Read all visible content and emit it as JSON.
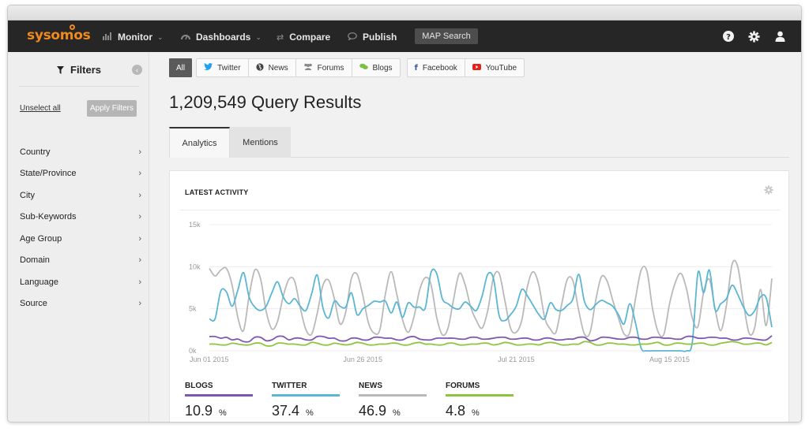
{
  "nav": {
    "logo": "sysomos",
    "items": [
      {
        "label": "Monitor",
        "icon": "bar-chart-icon"
      },
      {
        "label": "Dashboards",
        "icon": "gauge-icon"
      },
      {
        "label": "Compare",
        "icon": "swap-icon"
      },
      {
        "label": "Publish",
        "icon": "speech-bubble-icon"
      }
    ],
    "map_search": "MAP Search",
    "right_icons": [
      "help-icon",
      "gear-icon",
      "user-icon"
    ]
  },
  "sidebar": {
    "title": "Filters",
    "unselect_all": "Unselect all",
    "apply_filters": "Apply Filters",
    "filters": [
      "Country",
      "State/Province",
      "City",
      "Sub-Keywords",
      "Age Group",
      "Domain",
      "Language",
      "Source"
    ]
  },
  "sources": {
    "all": "All",
    "group1": [
      {
        "label": "Twitter",
        "icon": "twitter-icon",
        "color": "#1da1f2"
      },
      {
        "label": "News",
        "icon": "globe-icon",
        "color": "#444444"
      },
      {
        "label": "Forums",
        "icon": "people-icon",
        "color": "#888888"
      },
      {
        "label": "Blogs",
        "icon": "chat-icon",
        "color": "#7ac143"
      }
    ],
    "group2": [
      {
        "label": "Facebook",
        "icon": "facebook-icon",
        "color": "#3b5998"
      },
      {
        "label": "YouTube",
        "icon": "youtube-icon",
        "color": "#e62117"
      }
    ]
  },
  "results_title": "1,209,549 Query Results",
  "tabs": [
    "Analytics",
    "Mentions"
  ],
  "card": {
    "title": "LATEST ACTIVITY"
  },
  "chart_data": {
    "type": "line",
    "title": "LATEST ACTIVITY",
    "ylim": [
      0,
      15000
    ],
    "ytick_labels": [
      "15k",
      "10k",
      "5k",
      "0k"
    ],
    "xtick_labels": [
      "Jun 01 2015",
      "Jun 26 2015",
      "Jul 21 2015",
      "Aug 15 2015"
    ],
    "n_points": 100,
    "series": [
      {
        "name": "NEWS",
        "color": "#b9b9b9",
        "values": [
          9800,
          8900,
          9600,
          9800,
          7800,
          4000,
          2400,
          6500,
          9600,
          8600,
          4700,
          2600,
          3500,
          6500,
          8500,
          8300,
          5100,
          2500,
          2000,
          4500,
          7800,
          8400,
          6200,
          3200,
          4600,
          8600,
          9100,
          6600,
          3300,
          2100,
          2500,
          6800,
          9400,
          6700,
          3700,
          2200,
          4000,
          7200,
          8700,
          7900,
          4000,
          1900,
          2700,
          6200,
          9200,
          7900,
          5200,
          3600,
          2700,
          4800,
          8700,
          9200,
          6000,
          2700,
          2200,
          3700,
          7700,
          9400,
          7800,
          4000,
          2600,
          2200,
          5500,
          8500,
          8300,
          4800,
          2000,
          2200,
          6000,
          8800,
          8300,
          6000,
          3900,
          2000,
          2200,
          6200,
          9600,
          9500,
          5000,
          2200,
          2000,
          5600,
          8100,
          9200,
          7300,
          3900,
          2900,
          7000,
          8500,
          5000,
          2400,
          5400,
          10300,
          10000,
          5700,
          2100,
          2800,
          7300,
          3000,
          8600
        ]
      },
      {
        "name": "TWITTER",
        "color": "#5bb6d3",
        "values": [
          3800,
          3800,
          7100,
          7000,
          5300,
          7200,
          9300,
          6400,
          5200,
          4800,
          5300,
          6900,
          8200,
          6400,
          5600,
          6200,
          5300,
          4800,
          6800,
          9000,
          5100,
          3900,
          5900,
          5300,
          5200,
          6900,
          4300,
          5000,
          5400,
          5900,
          5800,
          5900,
          4500,
          5800,
          4000,
          5700,
          5200,
          5200,
          5100,
          9300,
          9200,
          6200,
          5600,
          5100,
          5000,
          5800,
          5300,
          4800,
          6500,
          9100,
          8600,
          4200,
          3600,
          4300,
          5300,
          7300,
          6500,
          5400,
          4300,
          3800,
          5700,
          4900,
          4800,
          5400,
          6200,
          9100,
          5900,
          4900,
          5500,
          6000,
          5700,
          5300,
          4300,
          3200,
          5600,
          3300,
          300,
          0,
          0,
          0,
          0,
          0,
          0,
          0,
          0,
          1000,
          9300,
          6900,
          9600,
          4900,
          5600,
          6200,
          7800,
          6700,
          5200,
          4200,
          4800,
          6400,
          6300,
          2800
        ]
      },
      {
        "name": "BLOGS",
        "color": "#7e57b1",
        "values": [
          1700,
          1700,
          1500,
          1600,
          1300,
          1400,
          1100,
          1100,
          1600,
          1600,
          1200,
          1300,
          1700,
          1700,
          1300,
          1500,
          1500,
          1300,
          1300,
          1700,
          1700,
          1500,
          1500,
          1200,
          1200,
          1500,
          1500,
          1300,
          1300,
          1600,
          1600,
          1500,
          1500,
          1300,
          1300,
          1600,
          1700,
          1400,
          1300,
          1300,
          1500,
          1500,
          1500,
          1500,
          1400,
          1400,
          1600,
          1600,
          1400,
          1400,
          1500,
          1600,
          1600,
          1400,
          1400,
          1500,
          1500,
          1300,
          1300,
          1500,
          1500,
          1300,
          1300,
          1400,
          1400,
          1600,
          1600,
          1200,
          1300,
          1600,
          1600,
          1500,
          1400,
          1400,
          1600,
          1600,
          1400,
          1400,
          1600,
          1600,
          1500,
          1500,
          1400,
          1400,
          1700,
          1700,
          1500,
          1500,
          1600,
          1600,
          1500,
          1500,
          1300,
          1300,
          1500,
          1500,
          1400,
          1300,
          1300,
          1800
        ]
      },
      {
        "name": "FORUMS",
        "color": "#8cc63f",
        "values": [
          800,
          800,
          700,
          700,
          900,
          800,
          700,
          700,
          900,
          900,
          600,
          600,
          900,
          900,
          800,
          800,
          700,
          700,
          1000,
          900,
          700,
          700,
          900,
          800,
          700,
          800,
          1000,
          900,
          700,
          700,
          800,
          800,
          900,
          900,
          700,
          700,
          900,
          1000,
          800,
          800,
          700,
          700,
          900,
          900,
          700,
          700,
          800,
          800,
          900,
          900,
          700,
          800,
          1000,
          900,
          700,
          700,
          800,
          800,
          700,
          900,
          1000,
          900,
          700,
          700,
          800,
          800,
          1100,
          1000,
          700,
          700,
          900,
          900,
          800,
          800,
          700,
          700,
          800,
          800,
          900,
          1000,
          700,
          700,
          900,
          900,
          800,
          800,
          900,
          900,
          700,
          700,
          900,
          1000,
          1100,
          1000,
          800,
          800,
          900,
          900,
          700,
          1000
        ]
      }
    ]
  },
  "stats": [
    {
      "label": "BLOGS",
      "value": "10.9",
      "unit": "%",
      "color": "#7e57b1"
    },
    {
      "label": "TWITTER",
      "value": "37.4",
      "unit": "%",
      "color": "#5bb6d3"
    },
    {
      "label": "NEWS",
      "value": "46.9",
      "unit": "%",
      "color": "#b9b9b9"
    },
    {
      "label": "FORUMS",
      "value": "4.8",
      "unit": "%",
      "color": "#8cc63f"
    }
  ]
}
